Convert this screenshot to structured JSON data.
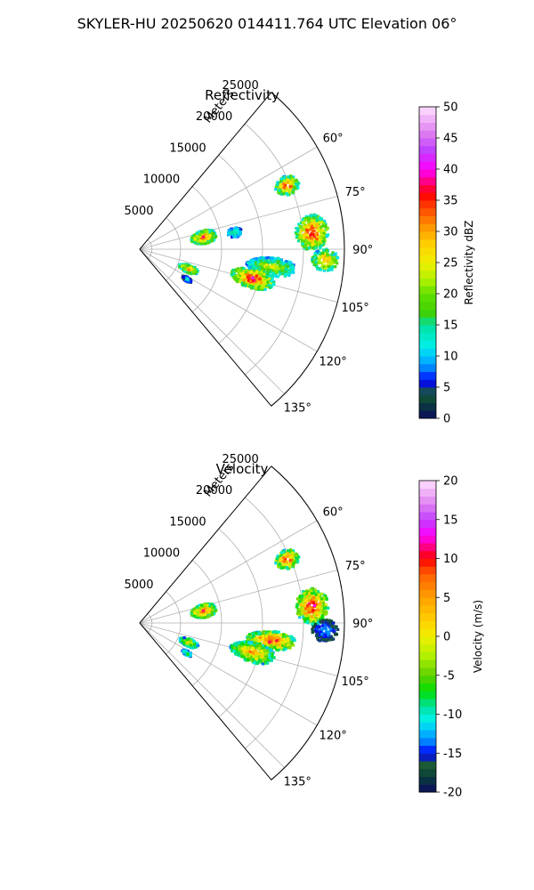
{
  "figure_title": "SKYLER-HU  20250620  014411.764 UTC Elevation 06°",
  "chart_data": [
    {
      "type": "heatmap",
      "panel": "polar sector (PPI)",
      "title": "Reflectivity",
      "range_axis_label": "Meters",
      "range_ticks": [
        5000,
        10000,
        15000,
        20000,
        25000
      ],
      "range_tick_labels": [
        "5000",
        "10000",
        "15000",
        "20000",
        "25000"
      ],
      "max_range_m": 25000,
      "azimuth_range_deg": [
        40,
        140
      ],
      "azimuth_ticks": [
        60,
        75,
        90,
        105,
        120,
        135
      ],
      "azimuth_tick_labels": [
        "60°",
        "75°",
        "90°",
        "105°",
        "120°",
        "135°"
      ],
      "grid": true,
      "colorbar": {
        "label": "Reflectivity dBZ",
        "vmin": 0,
        "vmax": 50,
        "ticks": [
          0,
          5,
          10,
          15,
          20,
          25,
          30,
          35,
          40,
          45,
          50
        ],
        "colors": [
          {
            "value": 0,
            "color": "#0b0b5e"
          },
          {
            "value": 2.5,
            "color": "#0a3d3a"
          },
          {
            "value": 4,
            "color": "#1a5a35"
          },
          {
            "value": 6,
            "color": "#0000ff"
          },
          {
            "value": 8,
            "color": "#0080ff"
          },
          {
            "value": 10,
            "color": "#00c8ff"
          },
          {
            "value": 12,
            "color": "#00f0e0"
          },
          {
            "value": 15,
            "color": "#00e0a0"
          },
          {
            "value": 17,
            "color": "#40d000"
          },
          {
            "value": 20,
            "color": "#60e000"
          },
          {
            "value": 22,
            "color": "#a8f000"
          },
          {
            "value": 25,
            "color": "#f0f000"
          },
          {
            "value": 28,
            "color": "#ffd000"
          },
          {
            "value": 31,
            "color": "#ff9000"
          },
          {
            "value": 34,
            "color": "#ff4000"
          },
          {
            "value": 36,
            "color": "#ff0000"
          },
          {
            "value": 38,
            "color": "#ff0080"
          },
          {
            "value": 40,
            "color": "#ff00ff"
          },
          {
            "value": 43,
            "color": "#c040ff"
          },
          {
            "value": 46,
            "color": "#e080f0"
          },
          {
            "value": 50,
            "color": "#ffe0ff"
          }
        ]
      },
      "echo_regions": [
        {
          "center_az": 66,
          "center_range_m": 19500,
          "az_width_deg": 7,
          "range_width_m": 3000,
          "peak": 42
        },
        {
          "center_az": 78,
          "center_range_m": 7800,
          "az_width_deg": 12,
          "range_width_m": 3200,
          "peak": 40
        },
        {
          "center_az": 79,
          "center_range_m": 11600,
          "az_width_deg": 6,
          "range_width_m": 1800,
          "peak": 22
        },
        {
          "center_az": 84,
          "center_range_m": 21000,
          "az_width_deg": 12,
          "range_width_m": 4000,
          "peak": 44
        },
        {
          "center_az": 93,
          "center_range_m": 22500,
          "az_width_deg": 7,
          "range_width_m": 3200,
          "peak": 38
        },
        {
          "center_az": 97,
          "center_range_m": 16000,
          "az_width_deg": 8,
          "range_width_m": 6000,
          "peak": 30
        },
        {
          "center_az": 104,
          "center_range_m": 14000,
          "az_width_deg": 10,
          "range_width_m": 5500,
          "peak": 44
        },
        {
          "center_az": 111,
          "center_range_m": 6200,
          "az_width_deg": 9,
          "range_width_m": 2500,
          "peak": 38
        },
        {
          "center_az": 122,
          "center_range_m": 6600,
          "az_width_deg": 5,
          "range_width_m": 1300,
          "peak": 13
        }
      ]
    },
    {
      "type": "heatmap",
      "panel": "polar sector (PPI)",
      "title": "Velocity",
      "range_axis_label": "Meters",
      "range_ticks": [
        5000,
        10000,
        15000,
        20000,
        25000
      ],
      "range_tick_labels": [
        "5000",
        "10000",
        "15000",
        "20000",
        "25000"
      ],
      "max_range_m": 25000,
      "azimuth_range_deg": [
        40,
        140
      ],
      "azimuth_ticks": [
        60,
        75,
        90,
        105,
        120,
        135
      ],
      "azimuth_tick_labels": [
        "60°",
        "75°",
        "90°",
        "105°",
        "120°",
        "135°"
      ],
      "grid": true,
      "colorbar": {
        "label": "Velocity (m/s)",
        "vmin": -20,
        "vmax": 20,
        "ticks": [
          -20,
          -15,
          -10,
          -5,
          0,
          5,
          10,
          15,
          20
        ],
        "colors": [
          {
            "value": -20,
            "color": "#0b0b5e"
          },
          {
            "value": -18,
            "color": "#0a3d3a"
          },
          {
            "value": -16.5,
            "color": "#1a5a35"
          },
          {
            "value": -15,
            "color": "#0000ff"
          },
          {
            "value": -13.5,
            "color": "#0080ff"
          },
          {
            "value": -12,
            "color": "#00c8ff"
          },
          {
            "value": -10.5,
            "color": "#00f0e0"
          },
          {
            "value": -9,
            "color": "#00e0a0"
          },
          {
            "value": -7,
            "color": "#00e000"
          },
          {
            "value": -5,
            "color": "#60d000"
          },
          {
            "value": -2.5,
            "color": "#b0f000"
          },
          {
            "value": 0,
            "color": "#f0f000"
          },
          {
            "value": 2,
            "color": "#ffd000"
          },
          {
            "value": 5,
            "color": "#ffa000"
          },
          {
            "value": 8,
            "color": "#ff6000"
          },
          {
            "value": 10,
            "color": "#ff0000"
          },
          {
            "value": 11.5,
            "color": "#ff0080"
          },
          {
            "value": 13,
            "color": "#ff00ff"
          },
          {
            "value": 15,
            "color": "#c040ff"
          },
          {
            "value": 17,
            "color": "#e080f0"
          },
          {
            "value": 20,
            "color": "#ffe0ff"
          }
        ]
      },
      "echo_regions": [
        {
          "center_az": 66,
          "center_range_m": 19500,
          "az_width_deg": 7,
          "range_width_m": 3000,
          "peak": 15
        },
        {
          "center_az": 78,
          "center_range_m": 7800,
          "az_width_deg": 12,
          "range_width_m": 3200,
          "peak": 13
        },
        {
          "center_az": 84,
          "center_range_m": 21000,
          "az_width_deg": 12,
          "range_width_m": 4000,
          "peak": 16
        },
        {
          "center_az": 92,
          "center_range_m": 22500,
          "az_width_deg": 7,
          "range_width_m": 3200,
          "peak": -11
        },
        {
          "center_az": 97,
          "center_range_m": 16000,
          "az_width_deg": 8,
          "range_width_m": 6000,
          "peak": 15
        },
        {
          "center_az": 104,
          "center_range_m": 14000,
          "az_width_deg": 10,
          "range_width_m": 5500,
          "peak": 10
        },
        {
          "center_az": 111,
          "center_range_m": 6200,
          "az_width_deg": 9,
          "range_width_m": 2500,
          "peak": 6
        },
        {
          "center_az": 122,
          "center_range_m": 6600,
          "az_width_deg": 5,
          "range_width_m": 1300,
          "peak": -3
        }
      ]
    }
  ]
}
